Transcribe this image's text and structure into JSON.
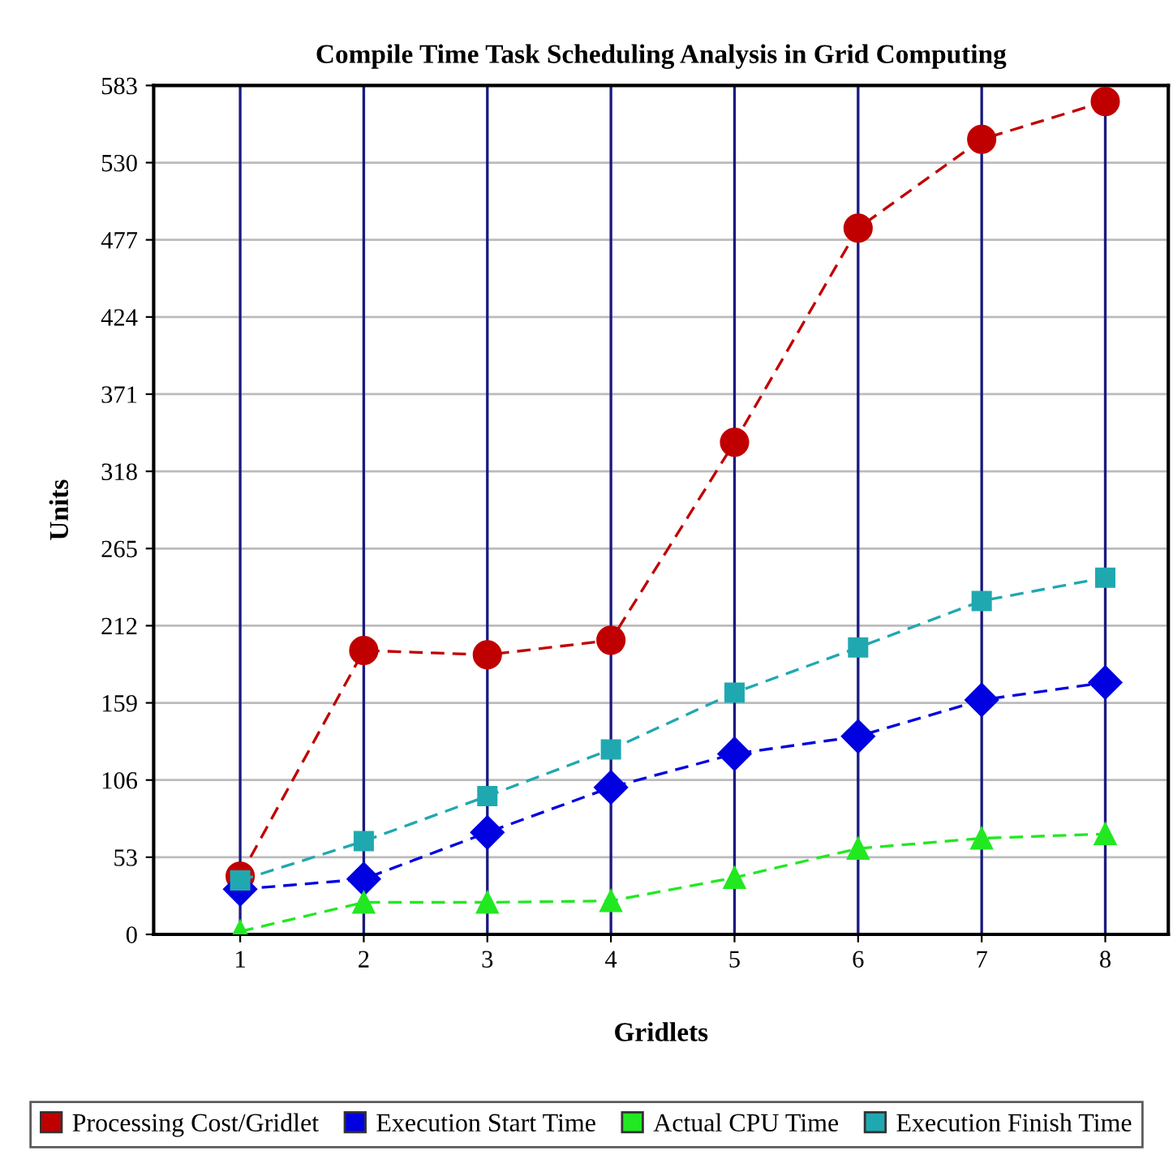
{
  "chart_data": {
    "type": "line",
    "title": "Compile Time Task Scheduling Analysis in Grid Computing",
    "xlabel": "Gridlets",
    "ylabel": "Units",
    "categories": [
      "1",
      "2",
      "3",
      "4",
      "5",
      "6",
      "7",
      "8"
    ],
    "series": [
      {
        "name": "Processing Cost/Gridlet",
        "color": "#c00000",
        "marker": "circle",
        "values": [
          40,
          195,
          192,
          202,
          338,
          485,
          546,
          572
        ]
      },
      {
        "name": "Execution Start Time",
        "color": "#0000e0",
        "marker": "diamond",
        "values": [
          31,
          38,
          70,
          101,
          124,
          136,
          161,
          173
        ]
      },
      {
        "name": "Actual CPU Time",
        "color": "#22e822",
        "marker": "triangle",
        "values": [
          2,
          22,
          22,
          23,
          39,
          59,
          66,
          69
        ]
      },
      {
        "name": "Execution Finish Time",
        "color": "#20a8b0",
        "marker": "square",
        "values": [
          37,
          64,
          95,
          127,
          166,
          197,
          229,
          245
        ]
      }
    ],
    "ylim": [
      0,
      583
    ],
    "yticks": [
      0,
      53,
      106,
      159,
      212,
      265,
      318,
      371,
      424,
      477,
      530,
      583
    ],
    "grid": true,
    "legend": "bottom",
    "line_style": "dashed"
  }
}
